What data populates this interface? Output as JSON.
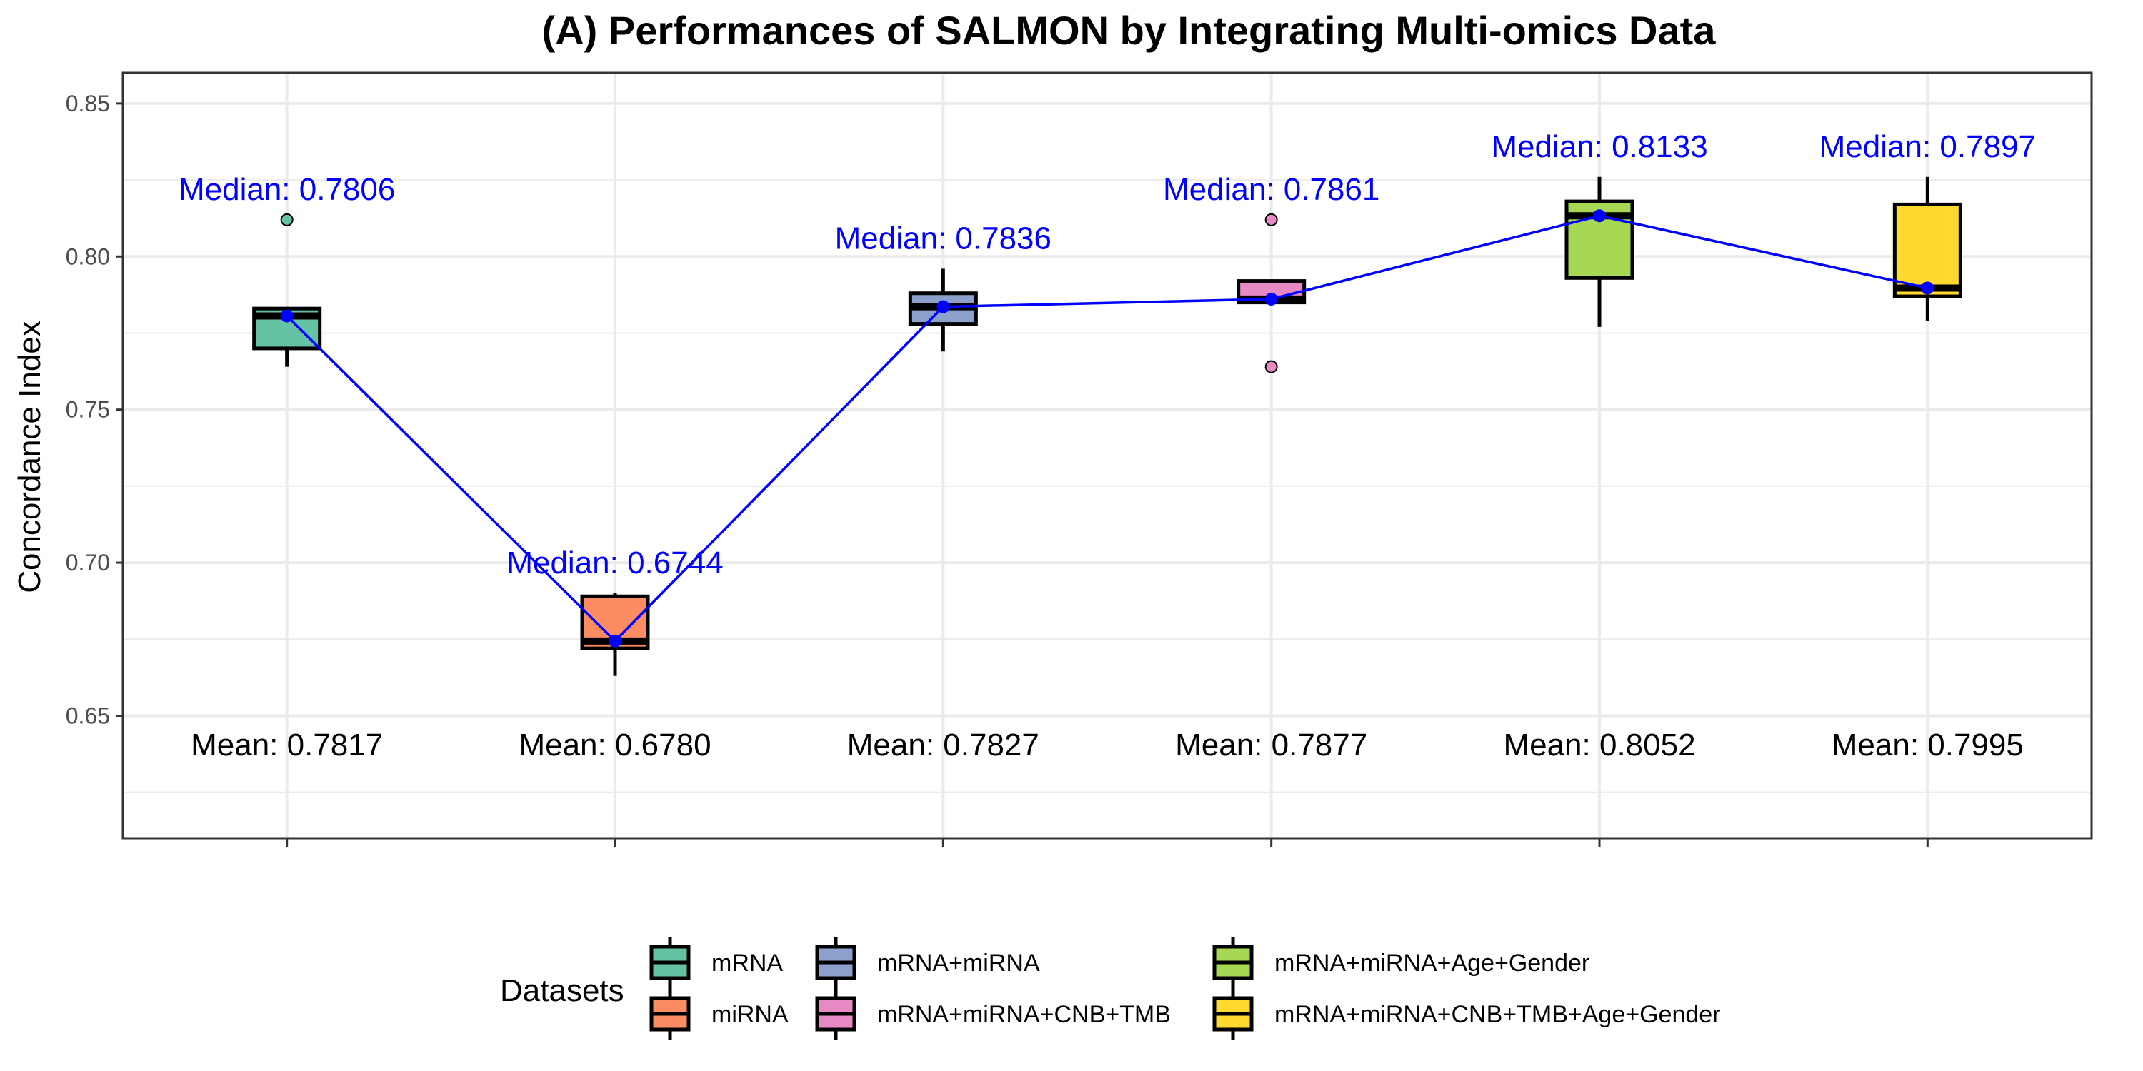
{
  "chart_data": {
    "type": "box",
    "title": "(A) Performances of SALMON by Integrating Multi-omics Data",
    "ylabel": "Concordance Index",
    "xlabel": "",
    "ylim": [
      0.61,
      0.86
    ],
    "y_ticks": [
      0.65,
      0.7,
      0.75,
      0.8,
      0.85
    ],
    "y_tick_labels": [
      "0.65",
      "0.70",
      "0.75",
      "0.80",
      "0.85"
    ],
    "grid": true,
    "legend": {
      "title": "Datasets",
      "position": "bottom"
    },
    "median_line_color": "#0000ff",
    "series": [
      {
        "name": "mRNA",
        "color": "#66c2a5",
        "whisker_low": 0.764,
        "q1": 0.77,
        "median": 0.7806,
        "q3": 0.783,
        "whisker_high": 0.783,
        "outliers": [
          0.812
        ],
        "median_label": "Median: 0.7806",
        "mean_label": "Mean: 0.7817"
      },
      {
        "name": "miRNA",
        "color": "#fc8d62",
        "whisker_low": 0.663,
        "q1": 0.672,
        "median": 0.6744,
        "q3": 0.689,
        "whisker_high": 0.69,
        "outliers": [],
        "median_label": "Median: 0.6744",
        "mean_label": "Mean: 0.6780"
      },
      {
        "name": "mRNA+miRNA",
        "color": "#8da0cb",
        "whisker_low": 0.769,
        "q1": 0.778,
        "median": 0.7836,
        "q3": 0.788,
        "whisker_high": 0.796,
        "outliers": [],
        "median_label": "Median: 0.7836",
        "mean_label": "Mean: 0.7827"
      },
      {
        "name": "mRNA+miRNA+CNB+TMB",
        "color": "#e78ac3",
        "whisker_low": 0.785,
        "q1": 0.785,
        "median": 0.7861,
        "q3": 0.792,
        "whisker_high": 0.792,
        "outliers": [
          0.812,
          0.764
        ],
        "median_label": "Median: 0.7861",
        "mean_label": "Mean: 0.7877"
      },
      {
        "name": "mRNA+miRNA+Age+Gender",
        "color": "#a6d854",
        "whisker_low": 0.777,
        "q1": 0.793,
        "median": 0.8133,
        "q3": 0.818,
        "whisker_high": 0.826,
        "outliers": [],
        "median_label": "Median: 0.8133",
        "mean_label": "Mean: 0.8052"
      },
      {
        "name": "mRNA+miRNA+CNB+TMB+Age+Gender",
        "color": "#ffd92f",
        "whisker_low": 0.779,
        "q1": 0.787,
        "median": 0.7897,
        "q3": 0.817,
        "whisker_high": 0.826,
        "outliers": [],
        "median_label": "Median: 0.7897",
        "mean_label": "Mean: 0.7995"
      }
    ]
  }
}
